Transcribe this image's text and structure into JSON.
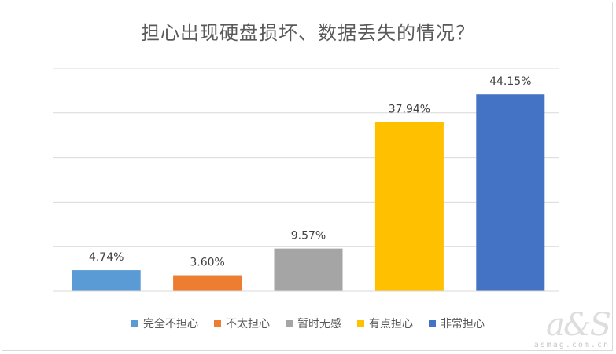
{
  "chart_data": {
    "type": "bar",
    "title": "担心出现硬盘损坏、数据丢失的情况？",
    "categories": [
      "完全不担心",
      "不太担心",
      "暂时无感",
      "有点担心",
      "非常担心"
    ],
    "values": [
      4.74,
      3.6,
      9.57,
      37.94,
      44.15
    ],
    "data_labels": [
      "4.74%",
      "3.60%",
      "9.57%",
      "37.94%",
      "44.15%"
    ],
    "colors": [
      "#5b9bd5",
      "#ed7d31",
      "#a5a5a5",
      "#ffc000",
      "#4472c4"
    ],
    "ylim": [
      0,
      50
    ],
    "grid": true,
    "legend_position": "bottom"
  },
  "watermark": {
    "logo": "a&S",
    "url": "asmag.com.cn"
  }
}
